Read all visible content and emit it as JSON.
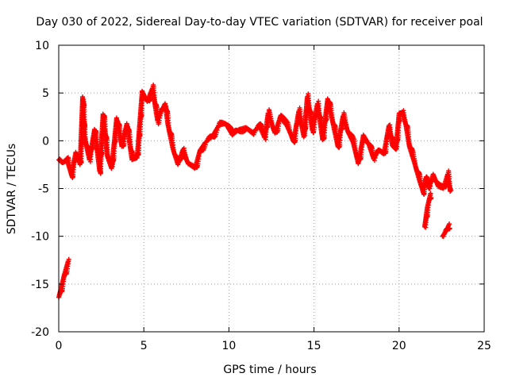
{
  "chart_data": {
    "type": "scatter",
    "title": "Day 030 of 2022, Sidereal Day-to-day VTEC variation (SDTVAR) for receiver poal",
    "xlabel": "GPS time / hours",
    "ylabel": "SDTVAR / TECUs",
    "xlim": [
      0,
      25
    ],
    "ylim": [
      -20,
      10
    ],
    "x_ticks": [
      0,
      5,
      10,
      15,
      20,
      25
    ],
    "y_ticks": [
      -20,
      -15,
      -10,
      -5,
      0,
      5,
      10
    ],
    "marker": "+",
    "grid": true,
    "series": [
      {
        "name": "SDTVAR",
        "color": "#ff0000",
        "anchors": [
          [
            0.0,
            -2.0
          ],
          [
            0.2,
            -2.3
          ],
          [
            0.5,
            -2.1
          ],
          [
            0.75,
            -3.6
          ],
          [
            1.0,
            -1.2
          ],
          [
            1.25,
            -2.5
          ],
          [
            1.4,
            4.6
          ],
          [
            1.5,
            0.5
          ],
          [
            1.8,
            -2.0
          ],
          [
            2.1,
            1.2
          ],
          [
            2.4,
            -3.2
          ],
          [
            2.6,
            2.8
          ],
          [
            2.85,
            -1.6
          ],
          [
            3.1,
            -2.9
          ],
          [
            3.4,
            2.4
          ],
          [
            3.7,
            -0.6
          ],
          [
            4.0,
            1.8
          ],
          [
            4.3,
            -2.0
          ],
          [
            4.6,
            -1.8
          ],
          [
            4.9,
            5.2
          ],
          [
            5.2,
            4.1
          ],
          [
            5.5,
            5.5
          ],
          [
            5.8,
            2.1
          ],
          [
            6.0,
            3.0
          ],
          [
            6.25,
            3.9
          ],
          [
            6.4,
            1.8
          ],
          [
            6.7,
            -0.8
          ],
          [
            7.0,
            -2.5
          ],
          [
            7.3,
            -0.9
          ],
          [
            7.6,
            -2.4
          ],
          [
            8.0,
            -2.9
          ],
          [
            8.3,
            -1.0
          ],
          [
            8.6,
            -0.2
          ],
          [
            9.0,
            0.4
          ],
          [
            9.4,
            1.6
          ],
          [
            9.8,
            1.8
          ],
          [
            10.2,
            0.6
          ],
          [
            10.6,
            1.2
          ],
          [
            11.0,
            1.4
          ],
          [
            11.4,
            0.9
          ],
          [
            11.8,
            1.5
          ],
          [
            12.1,
            0.3
          ],
          [
            12.3,
            2.9
          ],
          [
            12.7,
            0.8
          ],
          [
            13.0,
            2.4
          ],
          [
            13.4,
            1.6
          ],
          [
            13.8,
            0.0
          ],
          [
            14.1,
            3.1
          ],
          [
            14.4,
            0.4
          ],
          [
            14.6,
            4.6
          ],
          [
            14.9,
            1.1
          ],
          [
            15.2,
            3.9
          ],
          [
            15.5,
            0.1
          ],
          [
            15.8,
            4.4
          ],
          [
            16.1,
            1.9
          ],
          [
            16.4,
            -0.6
          ],
          [
            16.7,
            2.6
          ],
          [
            17.0,
            0.9
          ],
          [
            17.3,
            -0.2
          ],
          [
            17.6,
            -2.4
          ],
          [
            17.9,
            0.6
          ],
          [
            18.2,
            -0.3
          ],
          [
            18.5,
            -1.9
          ],
          [
            18.8,
            -1.0
          ],
          [
            19.1,
            -1.4
          ],
          [
            19.4,
            1.6
          ],
          [
            19.6,
            -0.5
          ],
          [
            19.8,
            -0.9
          ],
          [
            20.0,
            2.9
          ],
          [
            20.2,
            3.0
          ],
          [
            20.4,
            1.6
          ],
          [
            20.6,
            -0.6
          ],
          [
            20.9,
            -2.3
          ],
          [
            21.2,
            -4.2
          ],
          [
            21.4,
            -5.3
          ],
          [
            21.55,
            -4.0
          ],
          [
            21.75,
            -5.0
          ],
          [
            22.0,
            -3.5
          ],
          [
            22.3,
            -4.8
          ],
          [
            22.6,
            -5.0
          ],
          [
            22.85,
            -3.5
          ],
          [
            23.0,
            -5.3
          ]
        ],
        "segments": [
          [
            [
              0.0,
              -16.4
            ],
            [
              0.3,
              -14.2
            ],
            [
              0.55,
              -12.6
            ]
          ],
          [
            [
              21.5,
              -9.0
            ],
            [
              21.65,
              -7.0
            ],
            [
              21.85,
              -5.5
            ]
          ],
          [
            [
              22.55,
              -10.0
            ],
            [
              22.75,
              -9.5
            ],
            [
              22.95,
              -8.7
            ]
          ]
        ]
      }
    ]
  }
}
